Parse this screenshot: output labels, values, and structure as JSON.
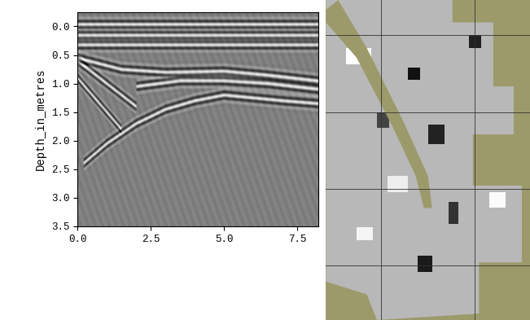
{
  "chart_data": {
    "type": "radargram",
    "ylabel": "Depth_in_metres",
    "xlim": [
      0,
      8.2
    ],
    "ylim": [
      3.5,
      -0.25
    ],
    "xticks": [
      {
        "value": 0,
        "label": "0.0"
      },
      {
        "value": 2.5,
        "label": "2.5"
      },
      {
        "value": 5,
        "label": "5.0"
      },
      {
        "value": 7.5,
        "label": "7.5"
      }
    ],
    "yticks": [
      {
        "value": 0,
        "label": "0.0"
      },
      {
        "value": 0.5,
        "label": "0.5"
      },
      {
        "value": 1,
        "label": "1.0"
      },
      {
        "value": 1.5,
        "label": "1.5"
      },
      {
        "value": 2,
        "label": "2.0"
      },
      {
        "value": 2.5,
        "label": "2.5"
      },
      {
        "value": 3,
        "label": "3.0"
      },
      {
        "value": 3.5,
        "label": "3.5"
      }
    ],
    "horizons": [
      {
        "x": [
          0,
          8.2
        ],
        "depth": [
          -0.04,
          -0.04
        ]
      },
      {
        "x": [
          0,
          8.2
        ],
        "depth": [
          0.15,
          0.15
        ]
      },
      {
        "x": [
          0,
          8.2
        ],
        "depth": [
          0.32,
          0.32
        ]
      },
      {
        "x": [
          0,
          1.5,
          3,
          5,
          6.5,
          8.2
        ],
        "depth": [
          0.55,
          0.75,
          0.8,
          0.78,
          0.85,
          0.95
        ]
      },
      {
        "x": [
          2,
          3.5,
          5,
          6.5,
          8.2
        ],
        "depth": [
          1.05,
          0.95,
          0.95,
          1.0,
          1.1
        ]
      },
      {
        "x": [
          0.2,
          1,
          2,
          3,
          4,
          5,
          6,
          7,
          8.2
        ],
        "depth": [
          2.4,
          2.05,
          1.7,
          1.45,
          1.3,
          1.2,
          1.25,
          1.3,
          1.35
        ]
      },
      {
        "x": [
          0,
          0.5,
          1,
          1.5,
          2
        ],
        "depth": [
          0.6,
          0.8,
          1.0,
          1.2,
          1.4
        ]
      },
      {
        "x": [
          0,
          0.5,
          1,
          1.5
        ],
        "depth": [
          0.9,
          1.2,
          1.5,
          1.8
        ]
      }
    ]
  }
}
